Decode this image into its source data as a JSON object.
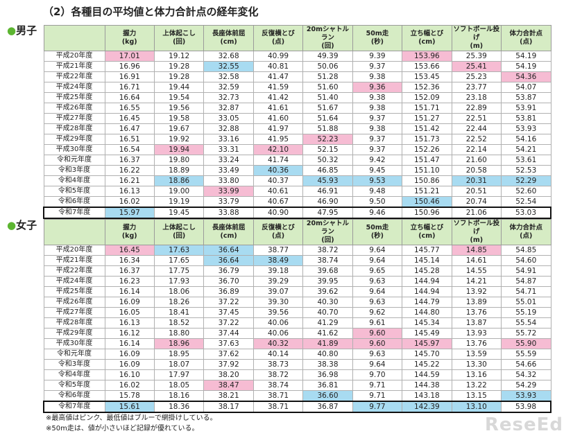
{
  "title": "（2）各種目の平均値と体力合計点の経年変化",
  "best_color": "#f6bcd3",
  "worst_color": "#a8dbf1",
  "headers": [
    {
      "name": "握力",
      "unit": "(kg)"
    },
    {
      "name": "上体起こし",
      "unit": "(回)"
    },
    {
      "name": "長座体前屈",
      "unit": "(cm)"
    },
    {
      "name": "反復横とび",
      "unit": "(点)"
    },
    {
      "name": "20mシャトルラン",
      "unit": "(回)"
    },
    {
      "name": "50m走",
      "unit": "(秒)"
    },
    {
      "name": "立ち幅とび",
      "unit": "(cm)"
    },
    {
      "name": "ソフトボール投げ",
      "unit": "(m)"
    },
    {
      "name": "体力合計点",
      "unit": "(点)"
    }
  ],
  "sections": [
    {
      "label": "男子",
      "rows": [
        {
          "year": "平成20年度",
          "values": [
            "17.01",
            "19.12",
            "32.68",
            "40.99",
            "49.39",
            "9.39",
            "153.96",
            "25.39",
            "54.19"
          ],
          "best": [
            0,
            6
          ],
          "worst": []
        },
        {
          "year": "平成21年度",
          "values": [
            "16.96",
            "19.28",
            "32.55",
            "40.81",
            "50.06",
            "9.37",
            "153.66",
            "25.41",
            "54.19"
          ],
          "best": [
            7
          ],
          "worst": [
            2
          ]
        },
        {
          "year": "平成22年度",
          "values": [
            "16.91",
            "19.28",
            "32.58",
            "41.47",
            "51.28",
            "9.38",
            "153.45",
            "25.23",
            "54.36"
          ],
          "best": [
            8
          ],
          "worst": []
        },
        {
          "year": "平成24年度",
          "values": [
            "16.71",
            "19.44",
            "32.59",
            "41.59",
            "51.60",
            "9.36",
            "152.36",
            "23.77",
            "54.07"
          ],
          "best": [
            5
          ],
          "worst": []
        },
        {
          "year": "平成25年度",
          "values": [
            "16.64",
            "19.54",
            "32.73",
            "41.42",
            "51.40",
            "9.38",
            "152.09",
            "23.18",
            "53.87"
          ],
          "best": [],
          "worst": []
        },
        {
          "year": "平成26年度",
          "values": [
            "16.55",
            "19.56",
            "32.87",
            "41.61",
            "51.67",
            "9.38",
            "151.71",
            "22.89",
            "53.91"
          ],
          "best": [],
          "worst": []
        },
        {
          "year": "平成27年度",
          "values": [
            "16.45",
            "19.58",
            "33.05",
            "41.60",
            "51.64",
            "9.37",
            "151.27",
            "22.51",
            "53.81"
          ],
          "best": [],
          "worst": []
        },
        {
          "year": "平成28年度",
          "values": [
            "16.47",
            "19.67",
            "32.88",
            "41.97",
            "51.88",
            "9.38",
            "151.42",
            "22.44",
            "53.93"
          ],
          "best": [],
          "worst": []
        },
        {
          "year": "平成29年度",
          "values": [
            "16.51",
            "19.92",
            "33.16",
            "41.95",
            "52.23",
            "9.37",
            "151.73",
            "22.52",
            "54.16"
          ],
          "best": [
            4
          ],
          "worst": []
        },
        {
          "year": "平成30年度",
          "values": [
            "16.54",
            "19.94",
            "33.31",
            "42.10",
            "52.15",
            "9.37",
            "152.26",
            "22.14",
            "54.21"
          ],
          "best": [
            1,
            3
          ],
          "worst": []
        },
        {
          "year": "令和元年度",
          "values": [
            "16.37",
            "19.80",
            "33.24",
            "41.74",
            "50.32",
            "9.42",
            "151.47",
            "21.60",
            "53.61"
          ],
          "best": [],
          "worst": []
        },
        {
          "year": "令和3年度",
          "values": [
            "16.22",
            "18.89",
            "33.49",
            "40.36",
            "46.85",
            "9.45",
            "151.10",
            "20.58",
            "52.53"
          ],
          "best": [],
          "worst": [
            3
          ]
        },
        {
          "year": "令和4年度",
          "values": [
            "16.21",
            "18.86",
            "33.80",
            "40.37",
            "45.93",
            "9.53",
            "150.86",
            "20.31",
            "52.29"
          ],
          "best": [],
          "worst": [
            1,
            4,
            5,
            7,
            8
          ]
        },
        {
          "year": "令和5年度",
          "values": [
            "16.13",
            "19.00",
            "33.99",
            "40.61",
            "46.91",
            "9.48",
            "151.21",
            "20.51",
            "52.60"
          ],
          "best": [
            2
          ],
          "worst": []
        },
        {
          "year": "令和6年度",
          "values": [
            "16.02",
            "19.19",
            "33.79",
            "40.67",
            "46.90",
            "9.50",
            "150.46",
            "20.74",
            "52.54"
          ],
          "best": [],
          "worst": [
            6
          ]
        },
        {
          "year": "令和7年度",
          "values": [
            "15.97",
            "19.45",
            "33.88",
            "40.90",
            "47.95",
            "9.46",
            "150.96",
            "21.06",
            "53.03"
          ],
          "best": [],
          "worst": [
            0
          ],
          "boxed": true
        }
      ]
    },
    {
      "label": "女子",
      "rows": [
        {
          "year": "平成20年度",
          "values": [
            "16.45",
            "17.63",
            "36.64",
            "38.77",
            "38.72",
            "9.64",
            "145.77",
            "14.85",
            "54.85"
          ],
          "best": [
            0,
            7
          ],
          "worst": [
            1,
            2
          ]
        },
        {
          "year": "平成21年度",
          "values": [
            "16.34",
            "17.65",
            "36.64",
            "38.49",
            "38.74",
            "9.64",
            "145.14",
            "14.61",
            "54.60"
          ],
          "best": [],
          "worst": [
            2,
            3
          ]
        },
        {
          "year": "平成22年度",
          "values": [
            "16.37",
            "17.75",
            "36.79",
            "39.18",
            "39.68",
            "9.65",
            "145.28",
            "14.55",
            "54.91"
          ],
          "best": [],
          "worst": []
        },
        {
          "year": "平成24年度",
          "values": [
            "16.23",
            "17.93",
            "36.70",
            "39.29",
            "39.95",
            "9.63",
            "144.94",
            "14.21",
            "54.87"
          ],
          "best": [],
          "worst": []
        },
        {
          "year": "平成25年度",
          "values": [
            "16.14",
            "18.06",
            "36.89",
            "39.07",
            "39.62",
            "9.64",
            "144.94",
            "13.92",
            "54.71"
          ],
          "best": [],
          "worst": []
        },
        {
          "year": "平成26年度",
          "values": [
            "16.09",
            "18.26",
            "37.22",
            "39.30",
            "40.30",
            "9.63",
            "144.79",
            "13.89",
            "55.01"
          ],
          "best": [],
          "worst": []
        },
        {
          "year": "平成27年度",
          "values": [
            "16.05",
            "18.41",
            "37.45",
            "39.56",
            "40.70",
            "9.62",
            "144.80",
            "13.76",
            "55.19"
          ],
          "best": [],
          "worst": []
        },
        {
          "year": "平成28年度",
          "values": [
            "16.13",
            "18.52",
            "37.22",
            "40.06",
            "41.29",
            "9.61",
            "145.34",
            "13.87",
            "55.54"
          ],
          "best": [],
          "worst": []
        },
        {
          "year": "平成29年度",
          "values": [
            "16.12",
            "18.80",
            "37.44",
            "40.06",
            "41.62",
            "9.60",
            "145.49",
            "13.93",
            "55.72"
          ],
          "best": [
            5
          ],
          "worst": []
        },
        {
          "year": "平成30年度",
          "values": [
            "16.14",
            "18.96",
            "37.63",
            "40.32",
            "41.89",
            "9.60",
            "145.97",
            "13.76",
            "55.90"
          ],
          "best": [
            1,
            3,
            4,
            5,
            6,
            8
          ],
          "worst": []
        },
        {
          "year": "令和元年度",
          "values": [
            "16.09",
            "18.95",
            "37.62",
            "40.14",
            "40.80",
            "9.63",
            "145.70",
            "13.59",
            "55.59"
          ],
          "best": [],
          "worst": []
        },
        {
          "year": "令和3年度",
          "values": [
            "16.09",
            "18.07",
            "37.92",
            "38.73",
            "38.38",
            "9.64",
            "145.22",
            "13.30",
            "54.66"
          ],
          "best": [],
          "worst": []
        },
        {
          "year": "令和4年度",
          "values": [
            "16.10",
            "17.97",
            "38.20",
            "38.72",
            "36.98",
            "9.70",
            "144.59",
            "13.16",
            "54.32"
          ],
          "best": [],
          "worst": []
        },
        {
          "year": "令和5年度",
          "values": [
            "16.02",
            "18.05",
            "38.47",
            "38.74",
            "36.81",
            "9.71",
            "144.38",
            "13.22",
            "54.29"
          ],
          "best": [
            2
          ],
          "worst": []
        },
        {
          "year": "令和6年度",
          "values": [
            "15.78",
            "18.16",
            "38.21",
            "38.71",
            "36.60",
            "9.71",
            "143.18",
            "13.15",
            "53.93"
          ],
          "best": [],
          "worst": [
            4,
            8
          ]
        },
        {
          "year": "令和7年度",
          "values": [
            "15.61",
            "18.36",
            "38.17",
            "38.71",
            "36.87",
            "9.77",
            "142.39",
            "13.10",
            "53.98"
          ],
          "best": [],
          "worst": [
            0,
            5,
            6,
            7
          ],
          "boxed": true
        }
      ]
    }
  ],
  "notes": [
    "※最高値はピンク、最低値はブルーで網掛けしている。",
    "※50m走は、値が小さいほど記録が優れている。"
  ],
  "watermark": "ReseEd"
}
